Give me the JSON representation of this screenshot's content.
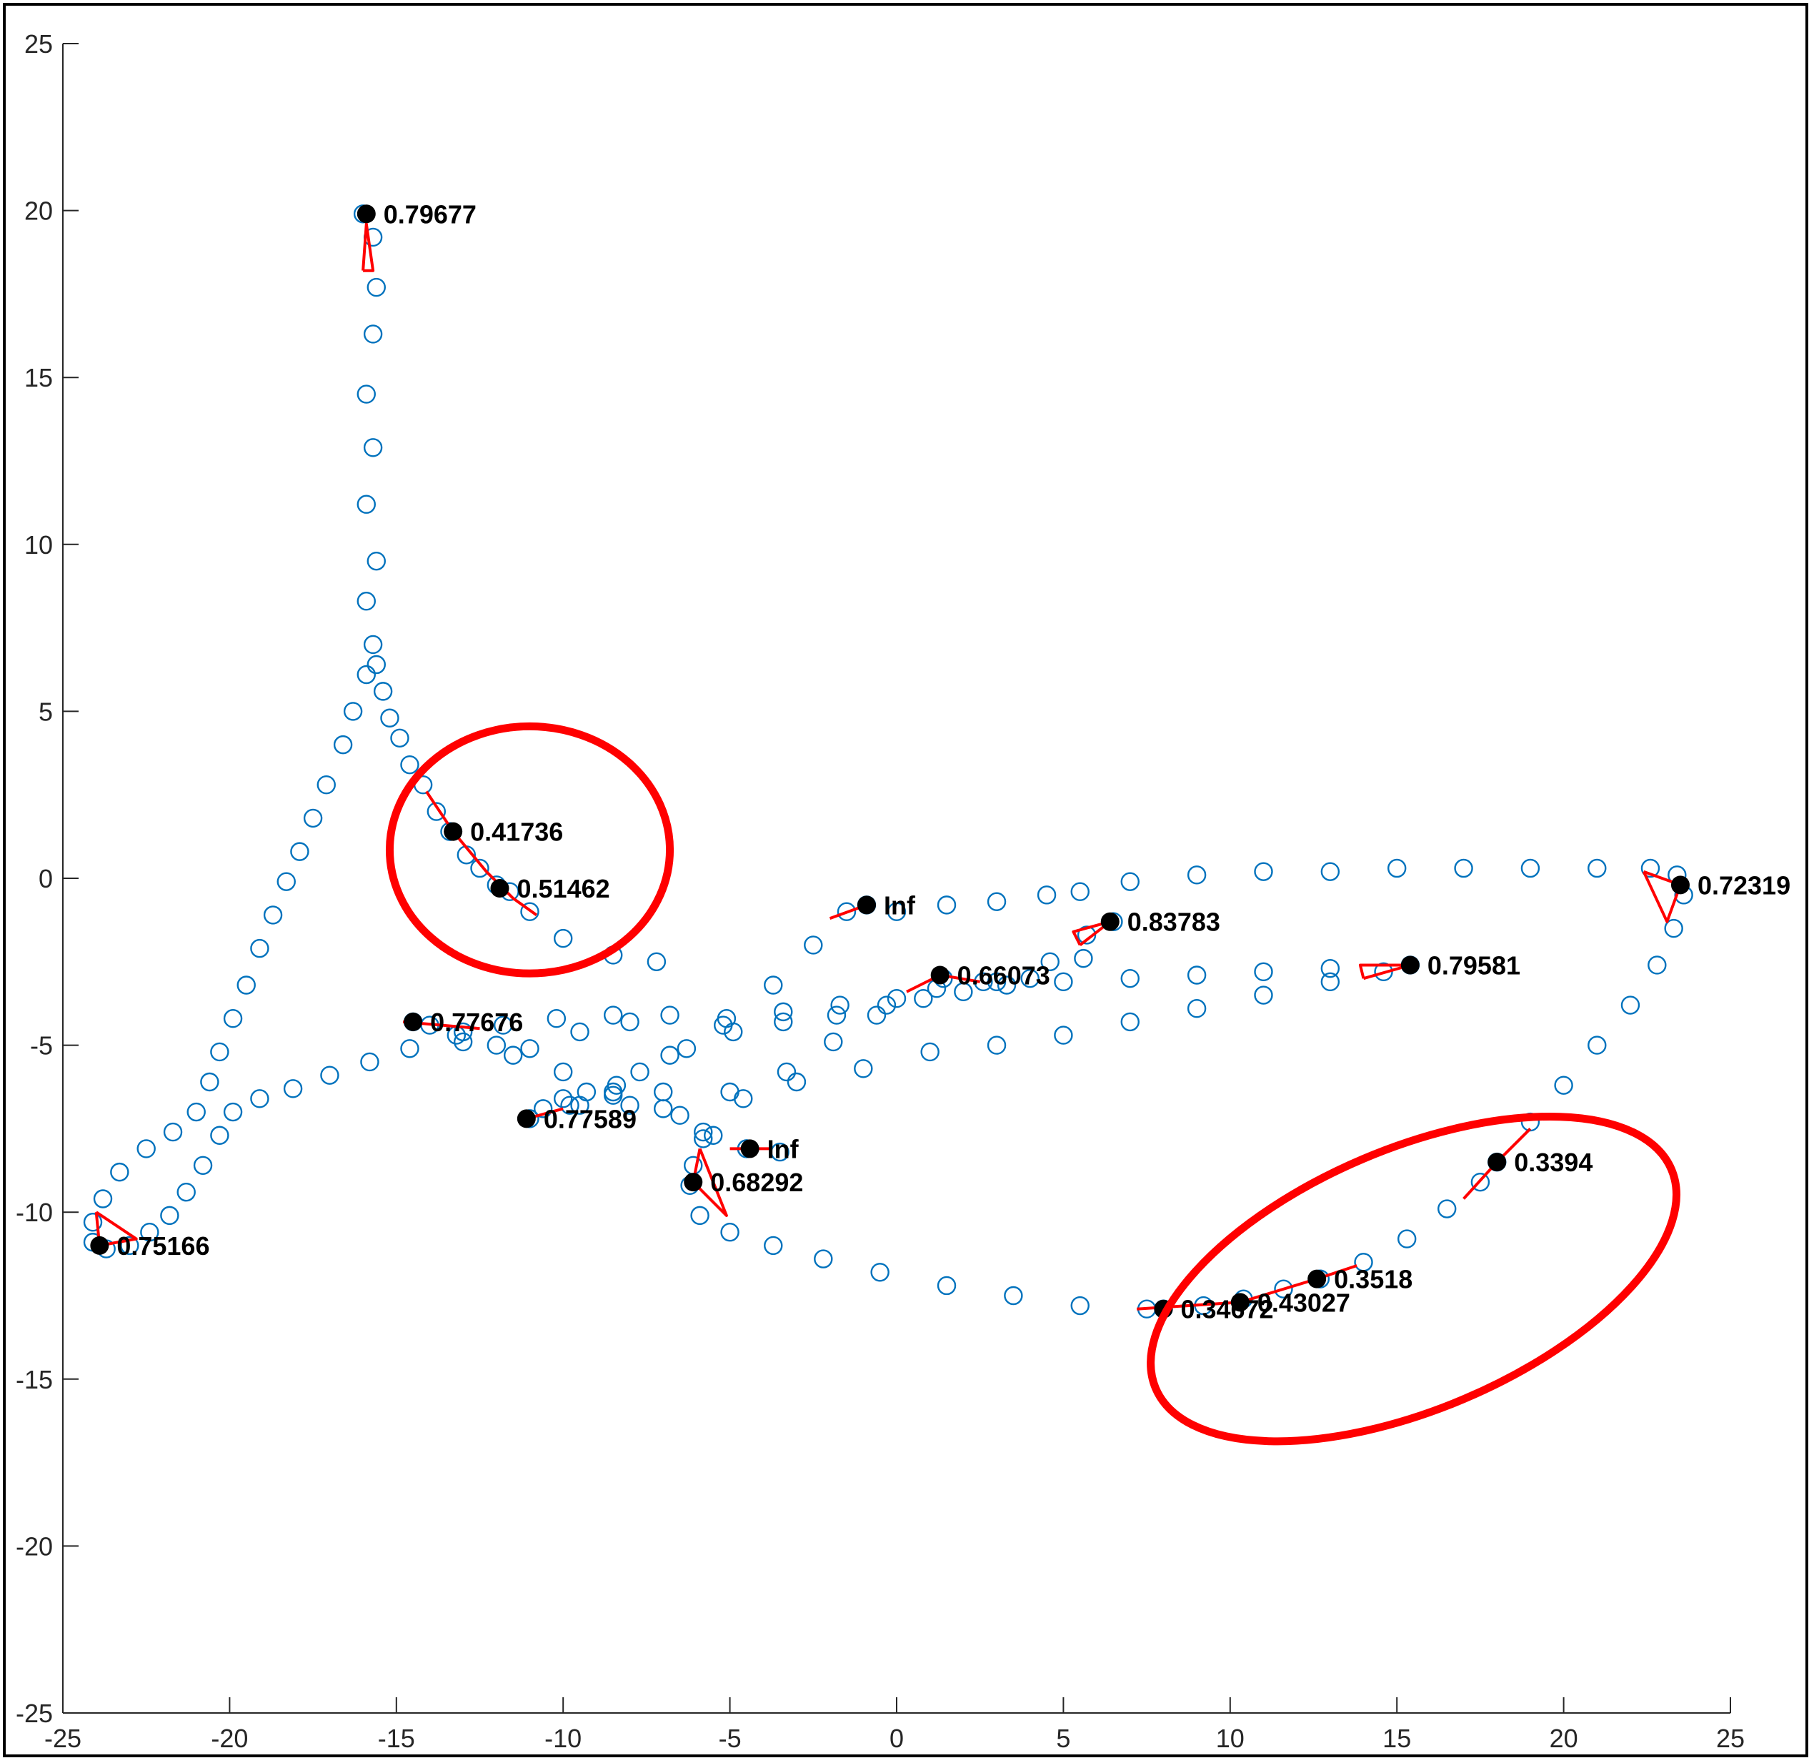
{
  "chart_data": {
    "type": "scatter",
    "title": "",
    "xlabel": "",
    "ylabel": "",
    "xlim": [
      -25,
      25
    ],
    "ylim": [
      -25,
      25
    ],
    "xticks": [
      "-25",
      "-20",
      "-15",
      "-10",
      "-5",
      "0",
      "5",
      "10",
      "15",
      "20",
      "25"
    ],
    "yticks": [
      "25",
      "20",
      "15",
      "10",
      "5",
      "0",
      "-5",
      "-10",
      "-15",
      "-20",
      "-25"
    ],
    "grid": false,
    "marker_color": "#0072BD",
    "vector_color": "#FF0000",
    "highlight_color": "#FF0000",
    "trajectory": [
      [
        -16.0,
        19.9
      ],
      [
        -15.7,
        19.2
      ],
      [
        -15.6,
        17.7
      ],
      [
        -15.7,
        16.3
      ],
      [
        -15.9,
        14.5
      ],
      [
        -15.7,
        12.9
      ],
      [
        -15.9,
        11.2
      ],
      [
        -15.6,
        9.5
      ],
      [
        -15.9,
        8.3
      ],
      [
        -15.7,
        7.0
      ],
      [
        -15.9,
        6.1
      ],
      [
        -16.3,
        5.0
      ],
      [
        -16.6,
        4.0
      ],
      [
        -17.1,
        2.8
      ],
      [
        -17.5,
        1.8
      ],
      [
        -17.9,
        0.8
      ],
      [
        -18.3,
        -0.1
      ],
      [
        -18.7,
        -1.1
      ],
      [
        -19.1,
        -2.1
      ],
      [
        -19.5,
        -3.2
      ],
      [
        -19.9,
        -4.2
      ],
      [
        -20.3,
        -5.2
      ],
      [
        -20.6,
        -6.1
      ],
      [
        -21.0,
        -7.0
      ],
      [
        -21.7,
        -7.6
      ],
      [
        -22.5,
        -8.1
      ],
      [
        -23.3,
        -8.8
      ],
      [
        -23.8,
        -9.6
      ],
      [
        -24.1,
        -10.3
      ],
      [
        -24.1,
        -10.9
      ],
      [
        -23.7,
        -11.1
      ],
      [
        -23.0,
        -11.0
      ],
      [
        -22.4,
        -10.6
      ],
      [
        -21.8,
        -10.1
      ],
      [
        -21.3,
        -9.4
      ],
      [
        -20.8,
        -8.6
      ],
      [
        -20.3,
        -7.7
      ],
      [
        -19.9,
        -7.0
      ],
      [
        -19.1,
        -6.6
      ],
      [
        -18.1,
        -6.3
      ],
      [
        -17.0,
        -5.9
      ],
      [
        -15.8,
        -5.5
      ],
      [
        -14.6,
        -5.1
      ],
      [
        -13.2,
        -4.7
      ],
      [
        -11.8,
        -4.4
      ],
      [
        -10.2,
        -4.2
      ],
      [
        -8.5,
        -4.1
      ],
      [
        -6.8,
        -4.1
      ],
      [
        -5.1,
        -4.2
      ],
      [
        -3.4,
        -4.0
      ],
      [
        -1.7,
        -3.8
      ],
      [
        0.0,
        -3.6
      ],
      [
        1.4,
        -3.0
      ],
      [
        2.6,
        -3.1
      ],
      [
        4.0,
        -3.0
      ],
      [
        5.6,
        -2.4
      ],
      [
        6.5,
        -1.3
      ],
      [
        5.7,
        -1.7
      ],
      [
        4.6,
        -2.5
      ],
      [
        3.3,
        -3.2
      ],
      [
        2.0,
        -3.4
      ],
      [
        0.8,
        -3.6
      ],
      [
        -0.6,
        -4.1
      ],
      [
        -1.9,
        -4.9
      ],
      [
        -3.3,
        -5.8
      ],
      [
        -4.6,
        -6.6
      ],
      [
        -5.8,
        -7.8
      ],
      [
        -6.1,
        -8.6
      ],
      [
        -6.2,
        -9.2
      ],
      [
        -5.9,
        -10.1
      ],
      [
        -5.0,
        -10.6
      ],
      [
        -3.7,
        -11.0
      ],
      [
        -2.2,
        -11.4
      ],
      [
        -0.5,
        -11.8
      ],
      [
        1.5,
        -12.2
      ],
      [
        3.5,
        -12.5
      ],
      [
        5.5,
        -12.8
      ],
      [
        7.5,
        -12.9
      ],
      [
        8.0,
        -12.9
      ],
      [
        9.2,
        -12.8
      ],
      [
        10.4,
        -12.6
      ],
      [
        11.6,
        -12.3
      ],
      [
        12.7,
        -12.0
      ],
      [
        14.0,
        -11.5
      ],
      [
        15.3,
        -10.8
      ],
      [
        16.5,
        -9.9
      ],
      [
        17.5,
        -9.1
      ],
      [
        18.0,
        -8.5
      ],
      [
        19.0,
        -7.3
      ],
      [
        20.0,
        -6.2
      ],
      [
        21.0,
        -5.0
      ],
      [
        22.0,
        -3.8
      ],
      [
        22.8,
        -2.6
      ],
      [
        23.3,
        -1.5
      ],
      [
        23.6,
        -0.5
      ],
      [
        23.4,
        0.1
      ],
      [
        22.6,
        0.3
      ],
      [
        21.0,
        0.3
      ],
      [
        19.0,
        0.3
      ],
      [
        17.0,
        0.3
      ],
      [
        15.0,
        0.3
      ],
      [
        13.0,
        0.2
      ],
      [
        11.0,
        0.2
      ],
      [
        9.0,
        0.1
      ],
      [
        7.0,
        -0.1
      ],
      [
        5.5,
        -0.4
      ],
      [
        4.5,
        -0.5
      ],
      [
        3.0,
        -0.7
      ],
      [
        1.5,
        -0.8
      ],
      [
        0.0,
        -1.0
      ],
      [
        -0.9,
        -0.8
      ],
      [
        -1.5,
        -1.0
      ],
      [
        -2.5,
        -2.0
      ],
      [
        -3.7,
        -3.2
      ],
      [
        -5.2,
        -4.4
      ],
      [
        -6.8,
        -5.3
      ],
      [
        -8.4,
        -6.2
      ],
      [
        -9.8,
        -6.8
      ],
      [
        -11.0,
        -7.2
      ],
      [
        -9.3,
        -6.4
      ],
      [
        -7.7,
        -5.8
      ],
      [
        -6.3,
        -5.1
      ],
      [
        -4.9,
        -4.6
      ],
      [
        -3.4,
        -4.3
      ],
      [
        -1.8,
        -4.1
      ],
      [
        -0.3,
        -3.8
      ],
      [
        1.2,
        -3.3
      ],
      [
        3.0,
        -3.1
      ],
      [
        5.0,
        -3.1
      ],
      [
        7.0,
        -3.0
      ],
      [
        9.0,
        -2.9
      ],
      [
        11.0,
        -2.8
      ],
      [
        13.0,
        -2.7
      ],
      [
        15.4,
        -2.6
      ],
      [
        14.6,
        -2.8
      ],
      [
        13.0,
        -3.1
      ],
      [
        11.0,
        -3.5
      ],
      [
        9.0,
        -3.9
      ],
      [
        7.0,
        -4.3
      ],
      [
        5.0,
        -4.7
      ],
      [
        3.0,
        -5.0
      ],
      [
        1.0,
        -5.2
      ],
      [
        -1.0,
        -5.7
      ],
      [
        -3.0,
        -6.1
      ],
      [
        -5.0,
        -6.4
      ],
      [
        -7.0,
        -6.4
      ],
      [
        -8.5,
        -6.5
      ],
      [
        -10.0,
        -6.6
      ],
      [
        -10.6,
        -6.9
      ],
      [
        -9.5,
        -6.8
      ],
      [
        -8.0,
        -6.8
      ],
      [
        -6.5,
        -7.1
      ],
      [
        -5.5,
        -7.7
      ],
      [
        -4.5,
        -8.1
      ],
      [
        -3.5,
        -8.2
      ],
      [
        -4.5,
        -8.1
      ],
      [
        -5.8,
        -7.6
      ],
      [
        -7.0,
        -6.9
      ],
      [
        -8.5,
        -6.4
      ],
      [
        -10.0,
        -5.8
      ],
      [
        -11.5,
        -5.3
      ],
      [
        -13.0,
        -4.9
      ],
      [
        -14.5,
        -4.3
      ],
      [
        -14.0,
        -4.4
      ],
      [
        -13.0,
        -4.6
      ],
      [
        -12.0,
        -5.0
      ],
      [
        -11.0,
        -5.1
      ],
      [
        -9.5,
        -4.6
      ],
      [
        -8.0,
        -4.3
      ],
      [
        -7.2,
        -2.5
      ],
      [
        -8.5,
        -2.3
      ],
      [
        -10.0,
        -1.8
      ],
      [
        -11.0,
        -1.0
      ],
      [
        -11.6,
        -0.4
      ],
      [
        -12.0,
        -0.2
      ],
      [
        -12.5,
        0.3
      ],
      [
        -12.9,
        0.7
      ],
      [
        -13.4,
        1.4
      ],
      [
        -13.8,
        2.0
      ],
      [
        -14.2,
        2.8
      ],
      [
        -14.6,
        3.4
      ],
      [
        -14.9,
        4.2
      ],
      [
        -15.2,
        4.8
      ],
      [
        -15.4,
        5.6
      ],
      [
        -15.6,
        6.4
      ]
    ],
    "points": [
      {
        "x": -15.9,
        "y": 19.9,
        "label": "0.79677"
      },
      {
        "x": -13.3,
        "y": 1.4,
        "label": "0.41736"
      },
      {
        "x": -11.9,
        "y": -0.3,
        "label": "0.51462"
      },
      {
        "x": -0.9,
        "y": -0.8,
        "label": "Inf"
      },
      {
        "x": 6.4,
        "y": -1.3,
        "label": "0.83783"
      },
      {
        "x": 23.5,
        "y": -0.2,
        "label": "0.72319"
      },
      {
        "x": 15.4,
        "y": -2.6,
        "label": "0.79581"
      },
      {
        "x": 1.3,
        "y": -2.9,
        "label": "0.66073"
      },
      {
        "x": -14.5,
        "y": -4.3,
        "label": "0.77676"
      },
      {
        "x": -11.1,
        "y": -7.2,
        "label": "0.77589"
      },
      {
        "x": -4.4,
        "y": -8.1,
        "label": "Inf"
      },
      {
        "x": -6.1,
        "y": -9.1,
        "label": "0.68292"
      },
      {
        "x": 18.0,
        "y": -8.5,
        "label": "0.3394"
      },
      {
        "x": 12.6,
        "y": -12.0,
        "label": "0.3518"
      },
      {
        "x": 10.3,
        "y": -12.7,
        "label": "0.43027"
      },
      {
        "x": 8.0,
        "y": -12.9,
        "label": "0.34672"
      },
      {
        "x": -23.9,
        "y": -11.0,
        "label": "0.75166"
      }
    ],
    "vectors": [
      [
        [
          -16.0,
          18.2
        ],
        [
          -15.9,
          19.6
        ],
        [
          -15.7,
          18.2
        ],
        [
          -16.0,
          18.2
        ]
      ],
      [
        [
          -14.1,
          2.6
        ],
        [
          -13.3,
          1.4
        ],
        [
          -12.3,
          0.2
        ],
        [
          -11.5,
          -0.6
        ],
        [
          -10.8,
          -1.1
        ]
      ],
      [
        [
          -2.0,
          -1.2
        ],
        [
          -0.9,
          -0.8
        ]
      ],
      [
        [
          5.5,
          -2.0
        ],
        [
          6.4,
          -1.3
        ],
        [
          5.3,
          -1.6
        ],
        [
          5.5,
          -2.0
        ]
      ],
      [
        [
          22.4,
          0.2
        ],
        [
          23.5,
          -0.2
        ],
        [
          23.1,
          -1.3
        ],
        [
          22.4,
          0.2
        ]
      ],
      [
        [
          14.0,
          -3.0
        ],
        [
          15.4,
          -2.6
        ],
        [
          13.9,
          -2.6
        ],
        [
          14.0,
          -3.0
        ]
      ],
      [
        [
          0.3,
          -3.4
        ],
        [
          1.3,
          -2.9
        ],
        [
          2.5,
          -3.1
        ]
      ],
      [
        [
          -14.8,
          -4.3
        ],
        [
          -12.5,
          -4.5
        ]
      ],
      [
        [
          -11.1,
          -7.2
        ],
        [
          -10.0,
          -6.9
        ]
      ],
      [
        [
          -5.0,
          -8.1
        ],
        [
          -3.8,
          -8.1
        ]
      ],
      [
        [
          -5.9,
          -8.1
        ],
        [
          -6.1,
          -9.1
        ],
        [
          -5.1,
          -10.1
        ],
        [
          -5.9,
          -8.1
        ]
      ],
      [
        [
          17.0,
          -9.6
        ],
        [
          18.0,
          -8.5
        ],
        [
          19.0,
          -7.5
        ]
      ],
      [
        [
          7.2,
          -12.9
        ],
        [
          10.3,
          -12.7
        ],
        [
          12.6,
          -12.0
        ],
        [
          13.8,
          -11.6
        ]
      ],
      [
        [
          -24.0,
          -10.0
        ],
        [
          -23.9,
          -11.0
        ],
        [
          -22.8,
          -10.8
        ],
        [
          -24.0,
          -10.0
        ]
      ]
    ],
    "highlights": [
      {
        "cx": -11.0,
        "cy": 0.85,
        "rx": 4.2,
        "ry": 3.7,
        "rot": 0
      },
      {
        "cx": 15.5,
        "cy": -12.0,
        "rx": 8.4,
        "ry": 3.9,
        "rot": -23
      }
    ]
  }
}
